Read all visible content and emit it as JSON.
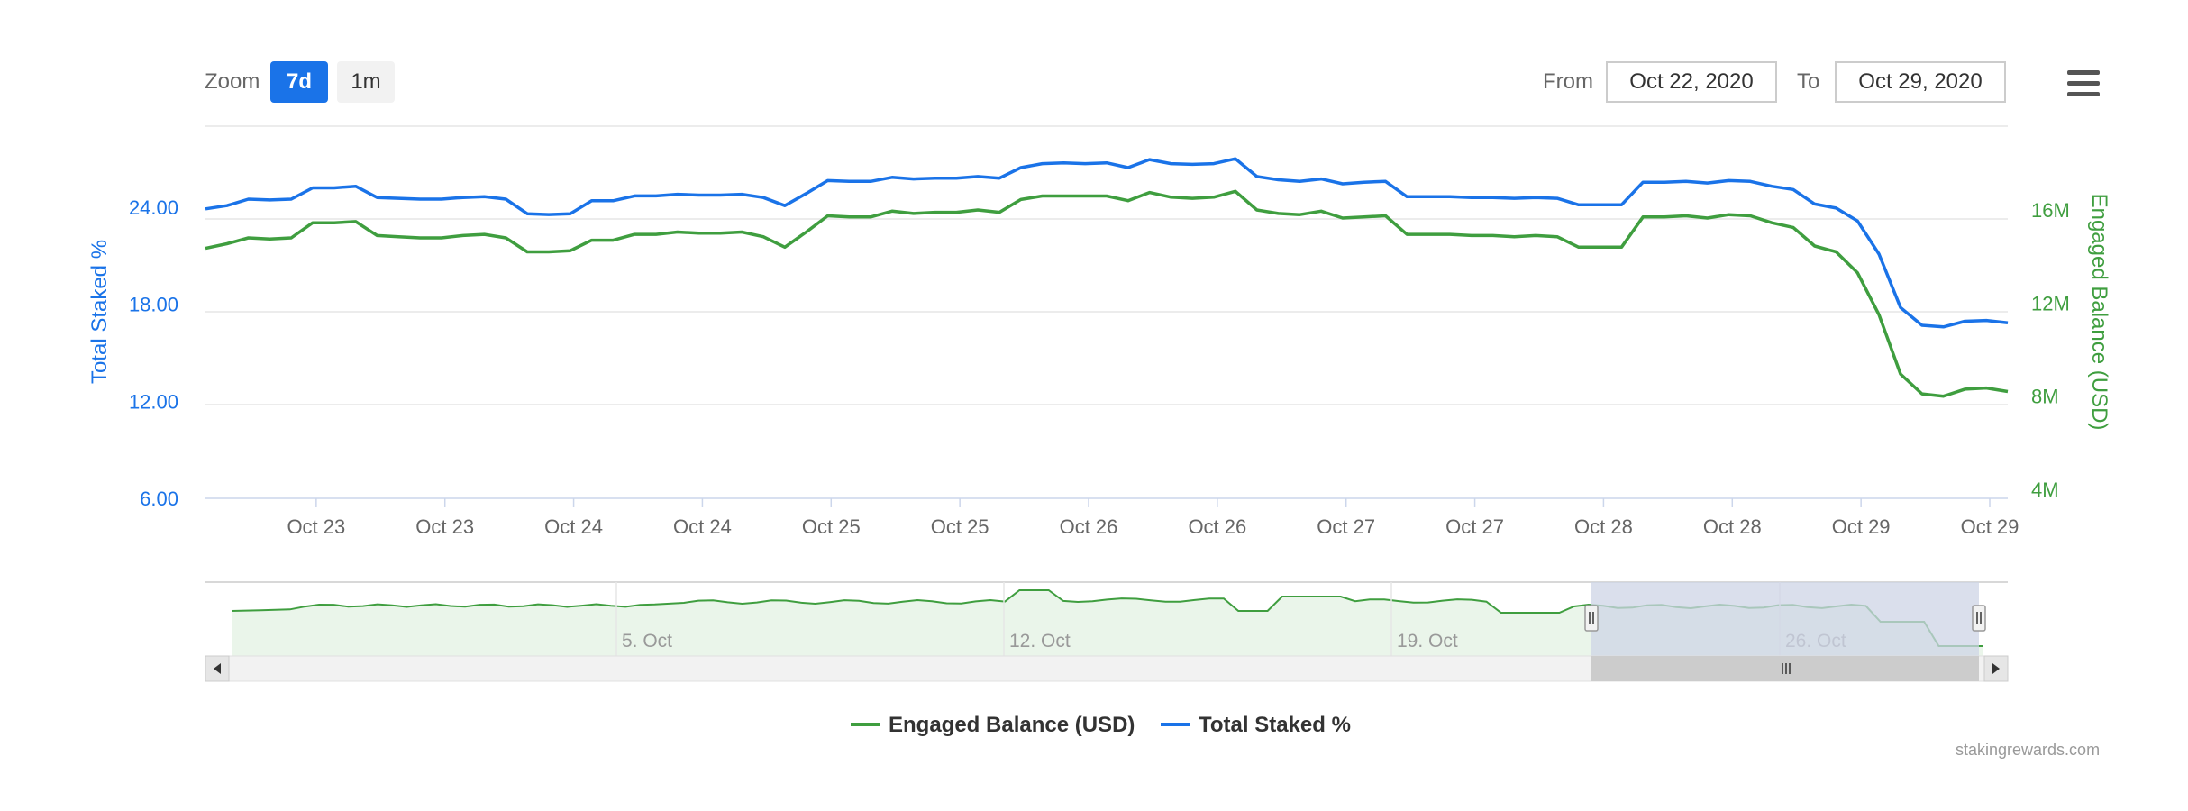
{
  "range_selector": {
    "zoom_label": "Zoom",
    "buttons": [
      "7d",
      "1m"
    ],
    "active_button": "7d",
    "from_label": "From",
    "from_value": "Oct 22, 2020",
    "to_label": "To",
    "to_value": "Oct 29, 2020"
  },
  "menu_icon": "hamburger-menu-icon",
  "credit": "stakingrewards.com",
  "colors": {
    "blue": "#1a73e8",
    "green": "#3f9e3f",
    "navigator_fill": "#eaf5ea",
    "navigator_selection": "#cdd4e6"
  },
  "chart_data": {
    "type": "line",
    "x_tick_labels": [
      "Oct 23",
      "Oct 23",
      "Oct 24",
      "Oct 24",
      "Oct 25",
      "Oct 25",
      "Oct 26",
      "Oct 26",
      "Oct 27",
      "Oct 27",
      "Oct 28",
      "Oct 28",
      "Oct 29",
      "Oct 29"
    ],
    "x_range_days": [
      0,
      7
    ],
    "y_left": {
      "label": "Total Staked %",
      "ticks": [
        "24.00",
        "18.00",
        "12.00",
        "6.00"
      ],
      "range": [
        6,
        24
      ]
    },
    "y_right": {
      "label": "Engaged Balance (USD)",
      "ticks": [
        "16M",
        "12M",
        "8M",
        "4M"
      ],
      "range": [
        4000000,
        16000000
      ]
    },
    "legend": {
      "placement": "bottom-center",
      "items": [
        "Engaged Balance (USD)",
        "Total Staked %"
      ]
    },
    "grid": true,
    "series": [
      {
        "name": "Total Staked %",
        "axis": "left",
        "color": "#1a73e8",
        "values": [
          23.9,
          24.1,
          24.5,
          24.45,
          24.5,
          25.2,
          25.2,
          25.3,
          24.6,
          24.55,
          24.5,
          24.5,
          24.6,
          24.65,
          24.5,
          23.6,
          23.55,
          23.6,
          24.4,
          24.4,
          24.7,
          24.7,
          24.8,
          24.75,
          24.75,
          24.8,
          24.6,
          24.1,
          24.85,
          25.65,
          25.6,
          25.6,
          25.85,
          25.75,
          25.8,
          25.8,
          25.9,
          25.8,
          26.45,
          26.7,
          26.75,
          26.7,
          26.75,
          26.45,
          26.95,
          26.7,
          26.65,
          26.7,
          27.0,
          25.9,
          25.7,
          25.6,
          25.75,
          25.45,
          25.55,
          25.6,
          24.65,
          24.65,
          24.65,
          24.6,
          24.6,
          24.55,
          24.6,
          24.55,
          24.15,
          24.15,
          24.15,
          25.55,
          25.55,
          25.6,
          25.5,
          25.65,
          25.6,
          25.3,
          25.1,
          24.2,
          23.95,
          23.15,
          21.1,
          17.8,
          16.7,
          16.6,
          16.95,
          17.0,
          16.85
        ]
      },
      {
        "name": "Engaged Balance (USD)",
        "axis": "right",
        "color": "#3f9e3f",
        "values": [
          14.35,
          14.55,
          14.8,
          14.75,
          14.8,
          15.45,
          15.45,
          15.5,
          14.9,
          14.85,
          14.8,
          14.8,
          14.9,
          14.95,
          14.8,
          14.2,
          14.2,
          14.25,
          14.7,
          14.7,
          14.95,
          14.95,
          15.05,
          15.0,
          15.0,
          15.05,
          14.85,
          14.4,
          15.05,
          15.75,
          15.7,
          15.7,
          15.95,
          15.85,
          15.9,
          15.9,
          16.0,
          15.9,
          16.45,
          16.6,
          16.6,
          16.6,
          16.6,
          16.4,
          16.75,
          16.55,
          16.5,
          16.55,
          16.8,
          16.0,
          15.85,
          15.8,
          15.95,
          15.65,
          15.7,
          15.75,
          14.95,
          14.95,
          14.95,
          14.9,
          14.9,
          14.85,
          14.9,
          14.85,
          14.4,
          14.4,
          14.4,
          15.7,
          15.7,
          15.75,
          15.65,
          15.8,
          15.75,
          15.45,
          15.25,
          14.45,
          14.2,
          13.3,
          11.5,
          8.95,
          8.1,
          8.0,
          8.3,
          8.35,
          8.2
        ]
      }
    ],
    "navigator": {
      "tick_labels": [
        "5. Oct",
        "12. Oct",
        "19. Oct",
        "26. Oct"
      ],
      "selection_label": "Oct 22, 2020 – Oct 29, 2020"
    }
  }
}
